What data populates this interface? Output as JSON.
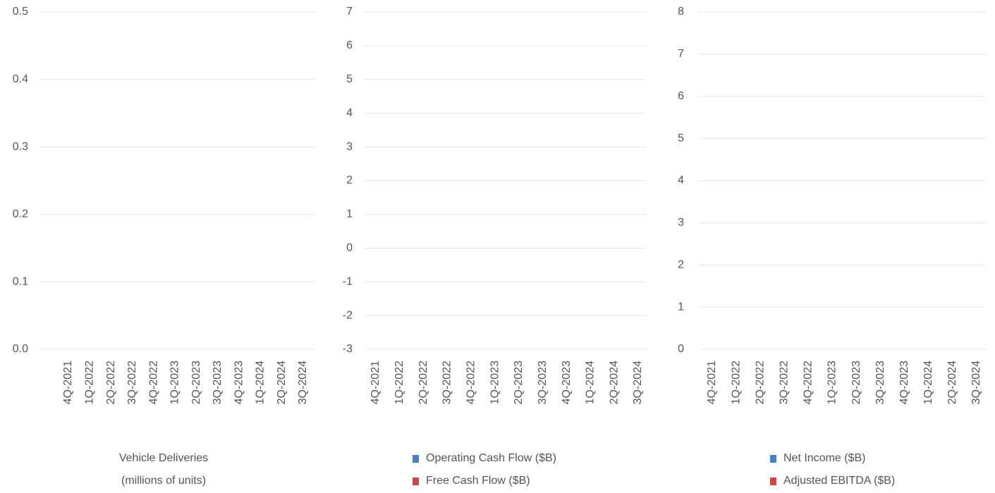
{
  "chart_data": [
    {
      "type": "bar",
      "categories": [
        "4Q-2021",
        "1Q-2022",
        "2Q-2022",
        "3Q-2022",
        "4Q-2022",
        "1Q-2023",
        "2Q-2023",
        "3Q-2023",
        "4Q-2023",
        "1Q-2024",
        "2Q-2024",
        "3Q-2024"
      ],
      "series": [
        {
          "name": "Vehicle Deliveries (millions of units)",
          "values": [
            null,
            null,
            null,
            null,
            null,
            null,
            null,
            null,
            null,
            null,
            null,
            null
          ]
        }
      ],
      "ylim": [
        0,
        0.5
      ],
      "yticks": [
        {
          "value": 0,
          "label": "0.0"
        },
        0.1,
        0.2,
        0.3,
        0.4,
        0.5
      ],
      "grid": true
    },
    {
      "type": "bar",
      "categories": [
        "4Q-2021",
        "1Q-2022",
        "2Q-2022",
        "3Q-2022",
        "4Q-2022",
        "1Q-2023",
        "2Q-2023",
        "3Q-2023",
        "4Q-2023",
        "1Q-2024",
        "2Q-2024",
        "3Q-2024"
      ],
      "series": [
        {
          "name": "Operating Cash Flow ($B)",
          "color": "#4a7fc1",
          "values": [
            null,
            null,
            null,
            null,
            null,
            null,
            null,
            null,
            null,
            null,
            null,
            null
          ]
        },
        {
          "name": "Free Cash Flow ($B)",
          "color": "#c9484a",
          "values": [
            null,
            null,
            null,
            null,
            null,
            null,
            null,
            null,
            null,
            null,
            null,
            null
          ]
        }
      ],
      "ylim": [
        -3,
        7
      ],
      "yticks": [
        -3,
        -2,
        -1,
        0,
        1,
        2,
        3,
        4,
        5,
        6,
        7
      ],
      "grid": true
    },
    {
      "type": "bar",
      "categories": [
        "4Q-2021",
        "1Q-2022",
        "2Q-2022",
        "3Q-2022",
        "4Q-2022",
        "1Q-2023",
        "2Q-2023",
        "3Q-2023",
        "4Q-2023",
        "1Q-2024",
        "2Q-2024",
        "3Q-2024"
      ],
      "series": [
        {
          "name": "Net Income ($B)",
          "color": "#4a7fc1",
          "values": [
            null,
            null,
            null,
            null,
            null,
            null,
            null,
            null,
            null,
            null,
            null,
            null
          ]
        },
        {
          "name": "Adjusted EBITDA ($B)",
          "color": "#c9484a",
          "values": [
            null,
            null,
            null,
            null,
            null,
            null,
            null,
            null,
            null,
            null,
            null,
            null
          ]
        }
      ],
      "ylim": [
        0,
        8
      ],
      "yticks": [
        0,
        1,
        2,
        3,
        4,
        5,
        6,
        7,
        8
      ],
      "grid": true
    }
  ]
}
